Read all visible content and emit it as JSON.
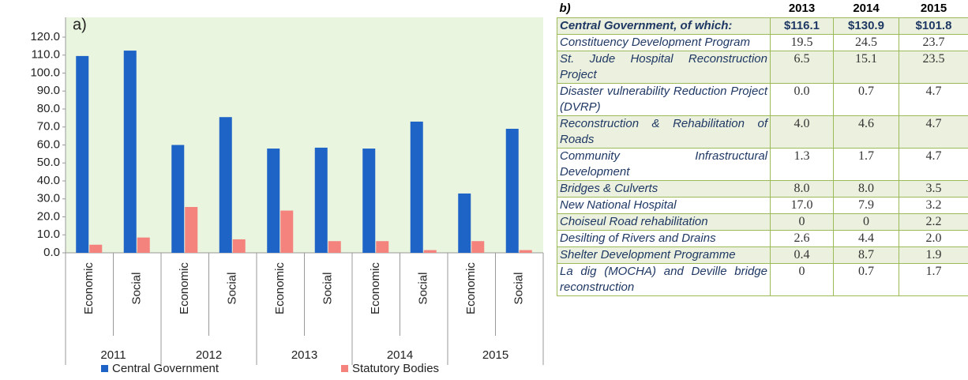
{
  "chart_data": {
    "type": "bar",
    "panel_label": "a)",
    "categories": [
      "Economic",
      "Social",
      "Economic",
      "Social",
      "Economic",
      "Social",
      "Economic",
      "Social",
      "Economic",
      "Social"
    ],
    "groups": [
      "2011",
      "2012",
      "2013",
      "2014",
      "2015"
    ],
    "series": [
      {
        "name": "Central Government",
        "color": "#1e63c6",
        "values": [
          109.5,
          112.5,
          60,
          75.5,
          58,
          58.5,
          58,
          73,
          33,
          69
        ]
      },
      {
        "name": "Statutory Bodies",
        "color": "#f4837d",
        "values": [
          4.5,
          8.5,
          25.5,
          7.5,
          23.5,
          6.5,
          6.5,
          1.5,
          6.5,
          1.5
        ]
      }
    ],
    "ylim": [
      0,
      120
    ],
    "yticks": [
      {
        "value": 0,
        "label": "0.0"
      },
      {
        "value": 10,
        "label": "10.0"
      },
      {
        "value": 20,
        "label": "20.0"
      },
      {
        "value": 30,
        "label": "30.0"
      },
      {
        "value": 40,
        "label": "40.0"
      },
      {
        "value": 50,
        "label": "50.0"
      },
      {
        "value": 60,
        "label": "60.0"
      },
      {
        "value": 70,
        "label": "70.0"
      },
      {
        "value": 80,
        "label": "80.0"
      },
      {
        "value": 90,
        "label": "90.0"
      },
      {
        "value": 100,
        "label": "100.0"
      },
      {
        "value": 110,
        "label": "110.0"
      },
      {
        "value": 120,
        "label": "120.0"
      }
    ]
  },
  "table": {
    "header": [
      "b)",
      "2013",
      "2014",
      "2015"
    ],
    "rows": [
      [
        "Central Government, of which:",
        "$116.1",
        "$130.9",
        "$101.8"
      ],
      [
        "Constituency Development Program",
        "19.5",
        "24.5",
        "23.7"
      ],
      [
        "St. Jude Hospital Reconstruction Project",
        "6.5",
        "15.1",
        "23.5"
      ],
      [
        "Disaster vulnerability Reduction Project (DVRP)",
        "0.0",
        "0.7",
        "4.7"
      ],
      [
        "Reconstruction & Rehabilitation of Roads",
        "4.0",
        "4.6",
        "4.7"
      ],
      [
        "Community Infrastructural Development",
        "1.3",
        "1.7",
        "4.7"
      ],
      [
        "Bridges & Culverts",
        "8.0",
        "8.0",
        "3.5"
      ],
      [
        "New National Hospital",
        "17.0",
        "7.9",
        "3.2"
      ],
      [
        "Choiseul Road rehabilitation",
        "0",
        "0",
        "2.2"
      ],
      [
        "Desilting of Rivers and Drains",
        "2.6",
        "4.4",
        "2.0"
      ],
      [
        "Shelter Development Programme",
        "0.4",
        "8.7",
        "1.9"
      ],
      [
        "La dig (MOCHA) and Deville bridge reconstruction",
        "0",
        "0.7",
        "1.7"
      ]
    ]
  }
}
